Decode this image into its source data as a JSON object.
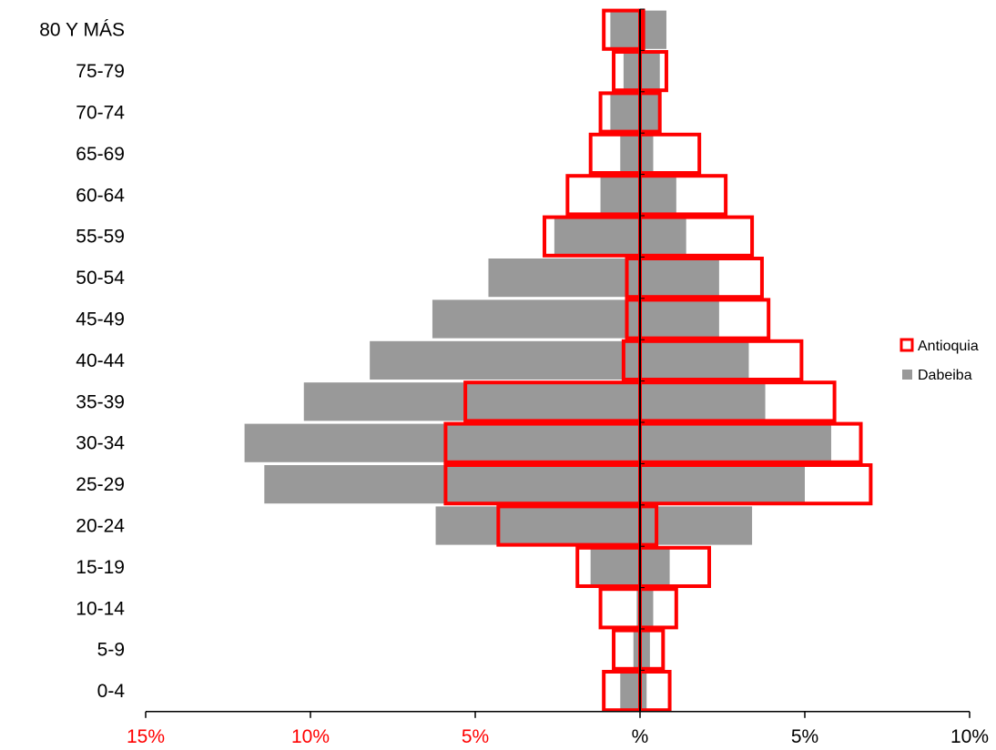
{
  "chart_data": {
    "type": "bar",
    "subtype": "population-pyramid",
    "orientation": "horizontal",
    "categories": [
      "0-4",
      "5-9",
      "10-14",
      "15-19",
      "20-24",
      "25-29",
      "30-34",
      "35-39",
      "40-44",
      "45-49",
      "50-54",
      "55-59",
      "60-64",
      "65-69",
      "70-74",
      "75-79",
      "80 Y MÁS"
    ],
    "series": [
      {
        "name": "Antioquia",
        "style": "outline",
        "color": "#ff0000",
        "left": [
          1.1,
          0.8,
          1.2,
          1.9,
          4.3,
          5.9,
          5.9,
          5.3,
          0.5,
          0.4,
          0.4,
          2.9,
          2.2,
          1.5,
          1.2,
          0.8,
          1.1
        ],
        "right": [
          0.9,
          0.7,
          1.1,
          2.1,
          0.5,
          7.0,
          6.7,
          5.9,
          4.9,
          3.9,
          3.7,
          3.4,
          2.6,
          1.8,
          0.6,
          0.8,
          0.1
        ]
      },
      {
        "name": "Dabeiba",
        "style": "filled",
        "color": "#999999",
        "left": [
          0.6,
          0.2,
          0.1,
          1.5,
          6.2,
          11.4,
          12.0,
          10.2,
          8.2,
          6.3,
          4.6,
          2.6,
          1.2,
          0.6,
          0.9,
          0.5,
          0.9
        ],
        "right": [
          0.2,
          0.3,
          0.4,
          0.9,
          3.4,
          5.0,
          5.8,
          3.8,
          3.3,
          2.4,
          2.4,
          1.4,
          1.1,
          0.4,
          0.6,
          0.6,
          0.8
        ]
      }
    ],
    "x_ticks": [
      {
        "value": -15,
        "label": "15%",
        "color": "#ff0000"
      },
      {
        "value": -10,
        "label": "10%",
        "color": "#ff0000"
      },
      {
        "value": -5,
        "label": "5%",
        "color": "#ff0000"
      },
      {
        "value": 0,
        "label": "%",
        "color": "#000000"
      },
      {
        "value": 5,
        "label": "5%",
        "color": "#000000"
      },
      {
        "value": 10,
        "label": "10%",
        "color": "#000000"
      }
    ],
    "xlim": [
      -15,
      10
    ],
    "legend_position": "right",
    "grid": false,
    "title": "",
    "xlabel": "",
    "ylabel": ""
  }
}
